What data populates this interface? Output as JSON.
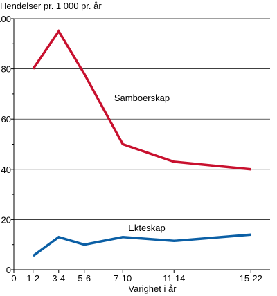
{
  "chart_data": {
    "type": "line",
    "ylabel": "Hendelser pr. 1 000 pr. år",
    "xlabel": "Varighet i år",
    "x_origin_label": "0",
    "categories": [
      "1-2",
      "3-4",
      "5-6",
      "7-10",
      "11-14",
      "15-22"
    ],
    "x_values": [
      1.5,
      3.5,
      5.5,
      8.5,
      12.5,
      18.5
    ],
    "xlim": [
      0,
      20
    ],
    "ylim": [
      0,
      100
    ],
    "yticks": [
      0,
      20,
      40,
      60,
      80,
      100
    ],
    "grid": "horizontal",
    "series": [
      {
        "name": "Samboerskap",
        "color": "#c8102e",
        "values": [
          80,
          95,
          78,
          50,
          43,
          40
        ]
      },
      {
        "name": "Ekteskap",
        "color": "#0b5fa5",
        "values": [
          5.5,
          13,
          10,
          13,
          11.5,
          14
        ]
      }
    ]
  }
}
